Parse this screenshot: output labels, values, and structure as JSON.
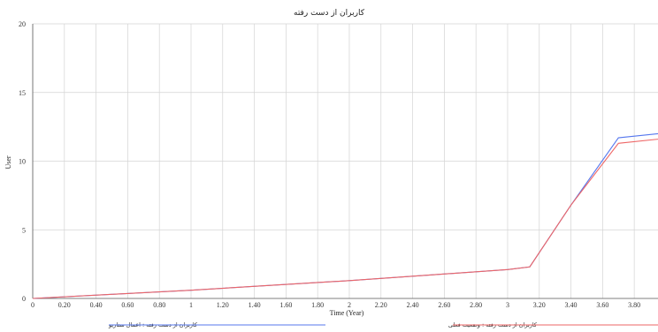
{
  "chart_data": {
    "type": "line",
    "title": "کاربران از دست رفته",
    "xlabel": "Time (Year)",
    "ylabel": "User",
    "xlim": [
      0,
      3.95
    ],
    "ylim": [
      0,
      20
    ],
    "grid": true,
    "legend_position": "bottom",
    "x_ticks": [
      "0",
      "0.20",
      "0.40",
      "0.60",
      "0.80",
      "1",
      "1.20",
      "1.40",
      "1.60",
      "1.80",
      "2",
      "2.20",
      "2.40",
      "2.60",
      "2.80",
      "3",
      "3.20",
      "3.40",
      "3.60",
      "3.80"
    ],
    "y_ticks": [
      "0",
      "5",
      "10",
      "15",
      "20"
    ],
    "series": [
      {
        "name": "کاربران از دست رفته : اعمال سناریو",
        "color": "#5577ee",
        "x": [
          0,
          0.5,
          1,
          1.5,
          2,
          2.5,
          3,
          3.14,
          3.4,
          3.7,
          3.95
        ],
        "y": [
          0,
          0.3,
          0.6,
          0.95,
          1.3,
          1.7,
          2.1,
          2.3,
          6.8,
          11.7,
          12.0
        ]
      },
      {
        "name": "کاربران از دست رفته : وضعیت فعلی",
        "color": "#ee6666",
        "x": [
          0,
          0.5,
          1,
          1.5,
          2,
          2.5,
          3,
          3.14,
          3.4,
          3.7,
          3.95
        ],
        "y": [
          0,
          0.3,
          0.6,
          0.95,
          1.3,
          1.7,
          2.1,
          2.3,
          6.8,
          11.3,
          11.6
        ]
      }
    ]
  }
}
